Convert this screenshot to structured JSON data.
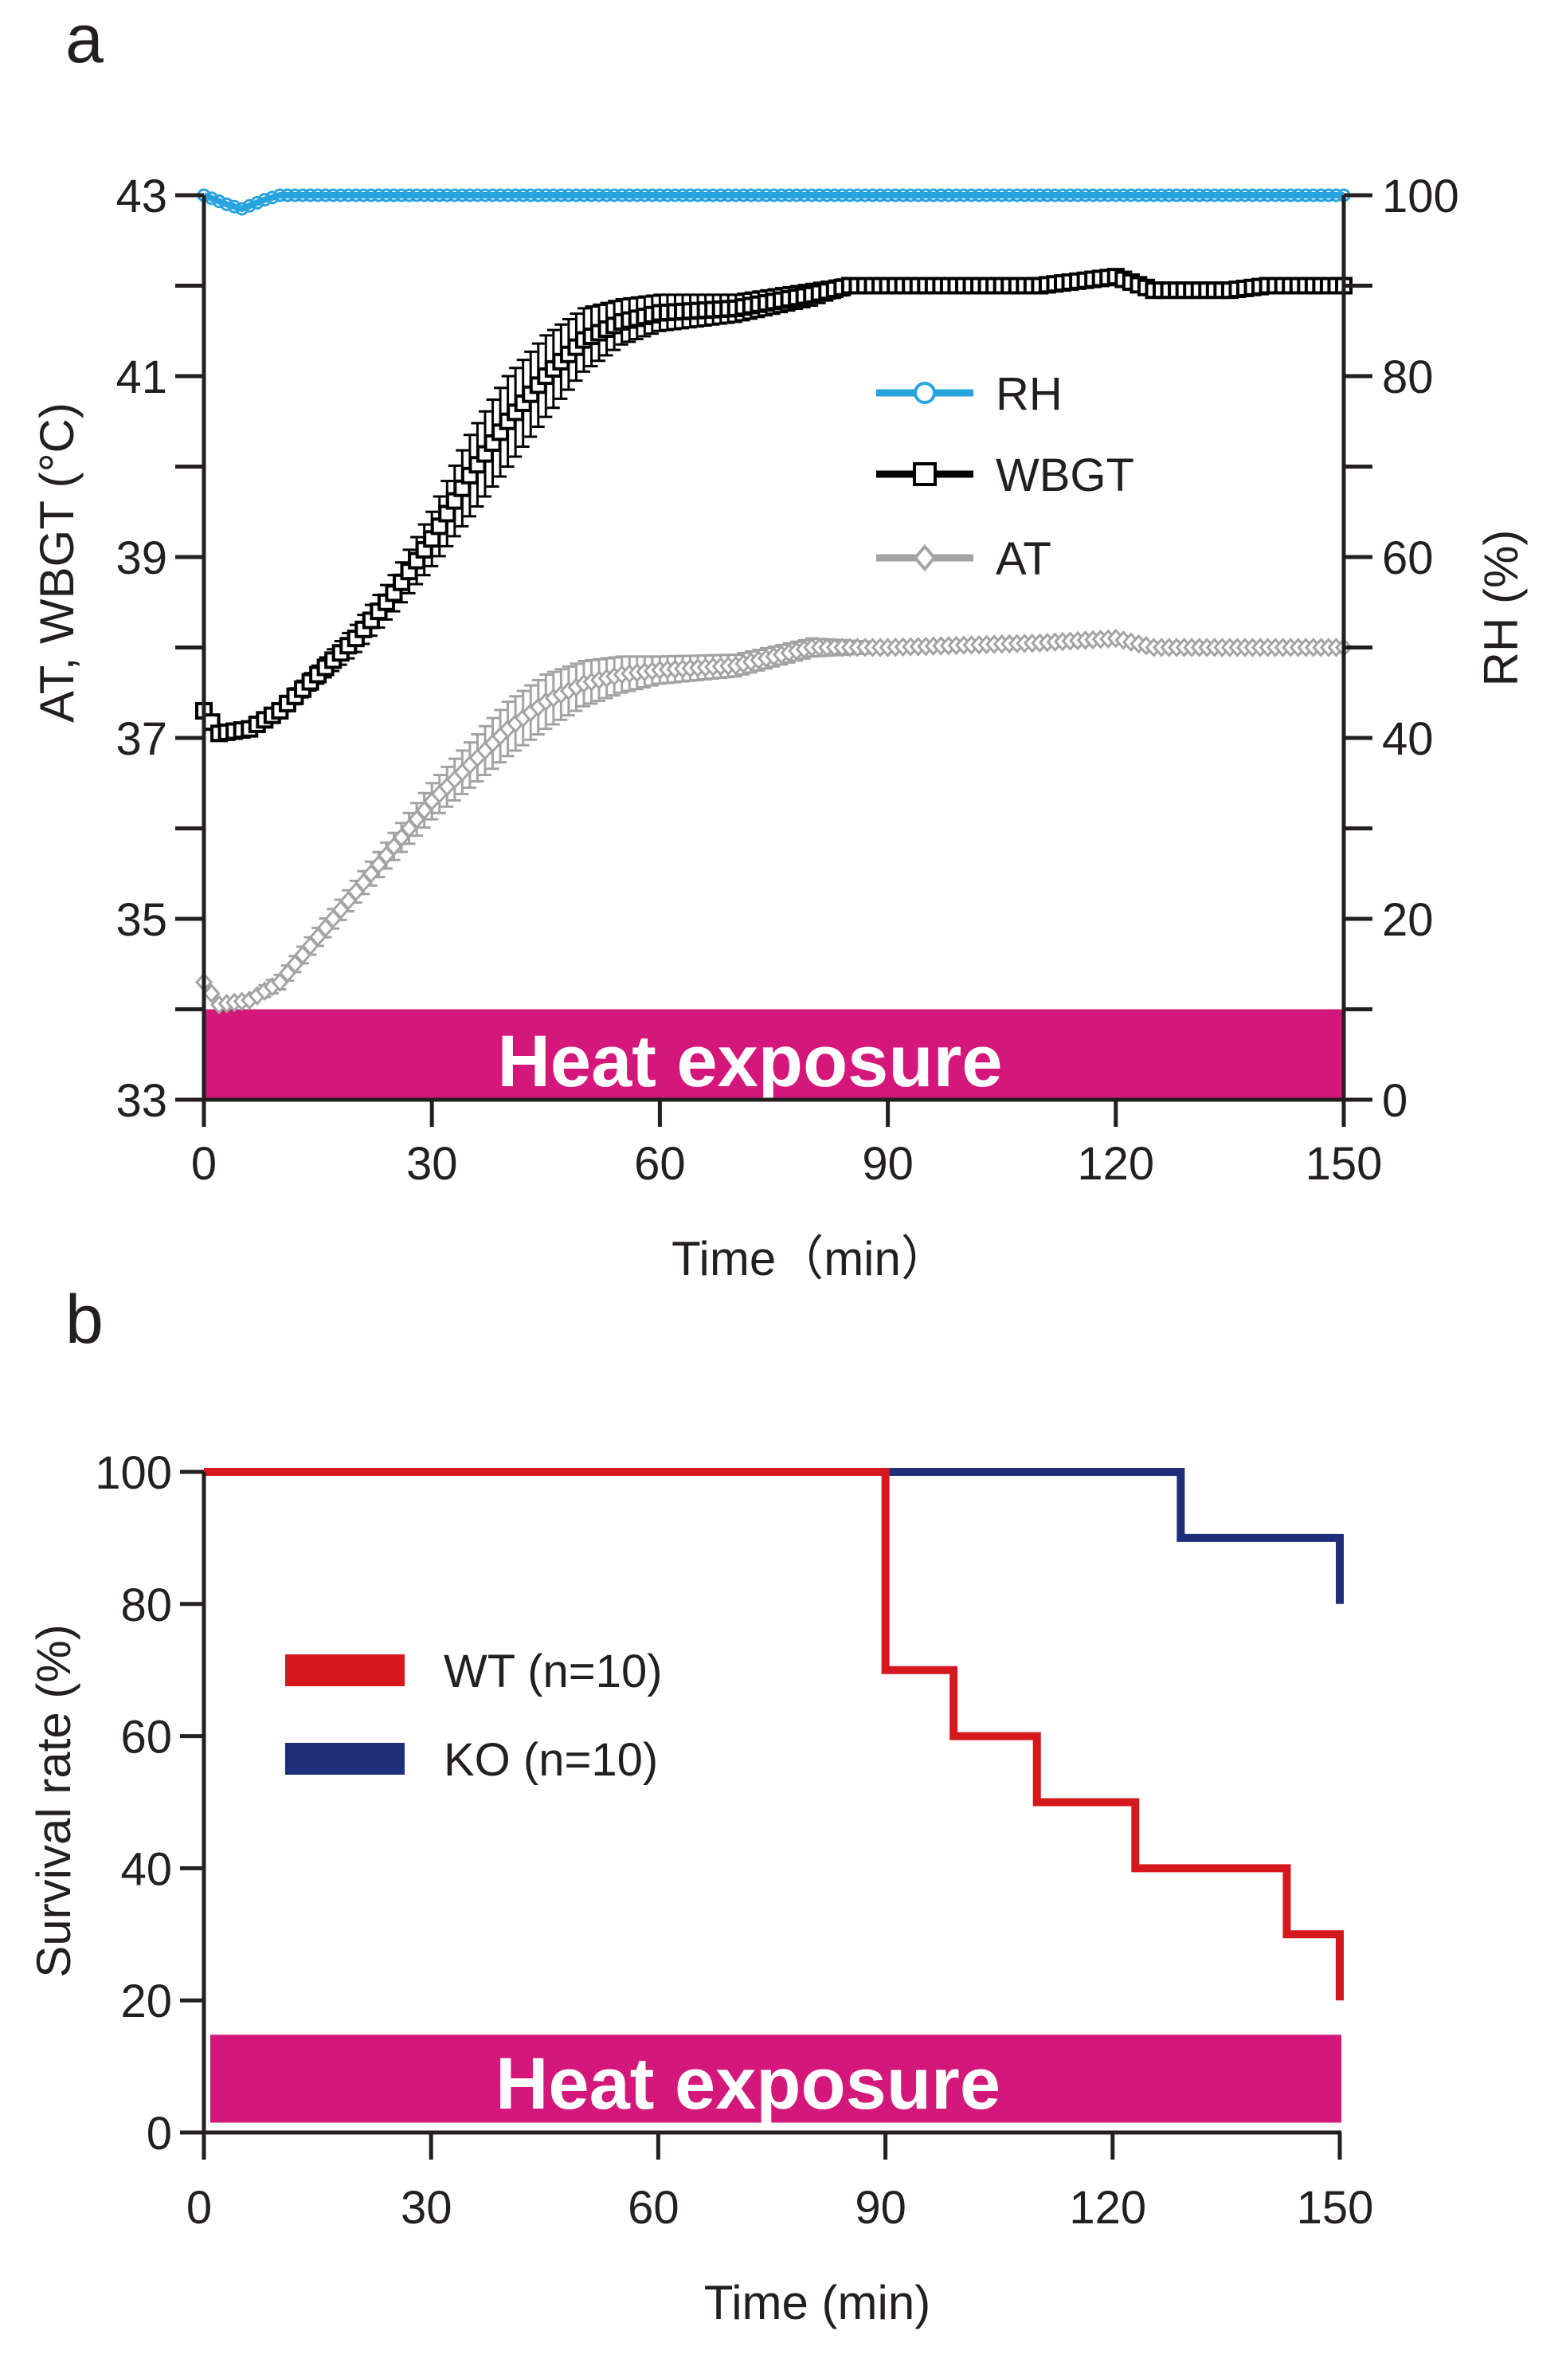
{
  "chart_data": [
    {
      "panel_label": "a",
      "type": "line",
      "xlabel": "Time（min）",
      "ylabel": "AT, WBGT (°C)",
      "ylabel_right": "RH (%)",
      "xlim": [
        0,
        150
      ],
      "ylim": [
        33,
        43
      ],
      "ylim_right": [
        0,
        100
      ],
      "xticks": [
        "0",
        "30",
        "60",
        "90",
        "120",
        "150"
      ],
      "yticks": [
        "33",
        "35",
        "37",
        "39",
        "41",
        "43"
      ],
      "yticks_right": [
        "0",
        "20",
        "40",
        "60",
        "80",
        "100"
      ],
      "grid": false,
      "legend_placement": "center-right",
      "annotation": "Heat exposure",
      "annotation_color": "#d4177a",
      "series": [
        {
          "name": "RH",
          "axis": "right",
          "color": "#27a3dd",
          "marker": "circle",
          "x": [
            0,
            3,
            5,
            8,
            10,
            150
          ],
          "y": [
            100,
            99,
            98.5,
            99.5,
            100,
            100
          ],
          "err": [
            0,
            0,
            0,
            0,
            0,
            0
          ]
        },
        {
          "name": "WBGT",
          "axis": "left",
          "color": "#000000",
          "marker": "square",
          "x": [
            0,
            2,
            6,
            10,
            15,
            20,
            25,
            30,
            35,
            40,
            45,
            50,
            55,
            60,
            70,
            80,
            85,
            90,
            100,
            110,
            120,
            125,
            135,
            140,
            150
          ],
          "y": [
            37.3,
            37.05,
            37.1,
            37.3,
            37.7,
            38.1,
            38.6,
            39.2,
            39.9,
            40.5,
            41.0,
            41.4,
            41.6,
            41.7,
            41.75,
            41.9,
            42.0,
            42.0,
            42.0,
            42.0,
            42.1,
            41.95,
            41.95,
            42.0,
            42.0
          ],
          "err": [
            0.05,
            0.05,
            0.05,
            0.08,
            0.1,
            0.15,
            0.2,
            0.3,
            0.45,
            0.5,
            0.45,
            0.35,
            0.25,
            0.2,
            0.15,
            0.12,
            0.08,
            0.05,
            0.05,
            0.05,
            0.05,
            0.05,
            0.05,
            0.05,
            0.05
          ]
        },
        {
          "name": "AT",
          "axis": "left",
          "color": "#a3a3a3",
          "marker": "diamond",
          "x": [
            0,
            2,
            6,
            10,
            15,
            20,
            25,
            30,
            35,
            40,
            45,
            50,
            55,
            60,
            70,
            80,
            90,
            110,
            120,
            125,
            135,
            140,
            150
          ],
          "y": [
            34.3,
            34.05,
            34.1,
            34.3,
            34.8,
            35.3,
            35.8,
            36.3,
            36.7,
            37.1,
            37.4,
            37.6,
            37.7,
            37.75,
            37.8,
            38.0,
            38.0,
            38.05,
            38.1,
            38.0,
            38.0,
            38.0,
            38.0
          ],
          "err": [
            0.05,
            0.05,
            0.05,
            0.08,
            0.1,
            0.12,
            0.15,
            0.2,
            0.25,
            0.3,
            0.3,
            0.25,
            0.2,
            0.15,
            0.12,
            0.1,
            0.05,
            0.05,
            0.05,
            0.05,
            0.05,
            0.05,
            0.05
          ]
        }
      ]
    },
    {
      "panel_label": "b",
      "type": "line",
      "step": true,
      "xlabel": "Time (min)",
      "ylabel": "Survival rate (%)",
      "xlim": [
        0,
        150
      ],
      "ylim": [
        0,
        100
      ],
      "xticks": [
        "0",
        "30",
        "60",
        "90",
        "120",
        "150"
      ],
      "yticks": [
        "0",
        "20",
        "40",
        "60",
        "80",
        "100"
      ],
      "grid": false,
      "legend_placement": "center-left",
      "annotation": "Heat exposure",
      "annotation_color": "#d4177a",
      "series": [
        {
          "name": "WT (n=10)",
          "color": "#d7171e",
          "x": [
            0,
            90,
            99,
            110,
            123,
            143,
            150
          ],
          "y": [
            100,
            70,
            60,
            50,
            40,
            30,
            20
          ]
        },
        {
          "name": "KO (n=10)",
          "color": "#1f2e7a",
          "x": [
            0,
            129,
            150
          ],
          "y": [
            100,
            90,
            80
          ]
        }
      ]
    }
  ]
}
